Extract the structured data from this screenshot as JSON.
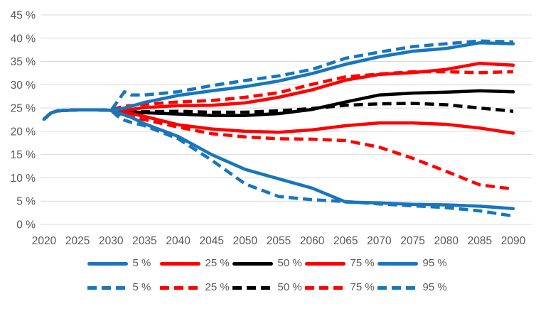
{
  "colors": {
    "blue": "#1776BC",
    "red": "#FF0000",
    "black": "#000000",
    "grid": "#D9D9D9",
    "tick_text": "#595959",
    "background": "#FFFFFF"
  },
  "chart_data": {
    "type": "line",
    "title": "",
    "xlabel": "",
    "ylabel": "",
    "xlim": [
      2020,
      2090
    ],
    "ylim": [
      0,
      45
    ],
    "grid": "horizontal-only",
    "legend_position": "bottom-two-rows",
    "y_ticks": [
      {
        "value": 0,
        "label": "0 %"
      },
      {
        "value": 5,
        "label": "5 %"
      },
      {
        "value": 10,
        "label": "10 %"
      },
      {
        "value": 15,
        "label": "15 %"
      },
      {
        "value": 20,
        "label": "20 %"
      },
      {
        "value": 25,
        "label": "25 %"
      },
      {
        "value": 30,
        "label": "30 %"
      },
      {
        "value": 35,
        "label": "35 %"
      },
      {
        "value": 40,
        "label": "40 %"
      },
      {
        "value": 45,
        "label": "45 %"
      }
    ],
    "x_ticks": [
      {
        "value": 2020,
        "label": "2020"
      },
      {
        "value": 2025,
        "label": "2025"
      },
      {
        "value": 2030,
        "label": "2030"
      },
      {
        "value": 2035,
        "label": "2035"
      },
      {
        "value": 2040,
        "label": "2040"
      },
      {
        "value": 2045,
        "label": "2045"
      },
      {
        "value": 2050,
        "label": "2050"
      },
      {
        "value": 2055,
        "label": "2055"
      },
      {
        "value": 2060,
        "label": "2060"
      },
      {
        "value": 2065,
        "label": "2065"
      },
      {
        "value": 2070,
        "label": "2070"
      },
      {
        "value": 2075,
        "label": "2075"
      },
      {
        "value": 2080,
        "label": "2080"
      },
      {
        "value": 2085,
        "label": "2085"
      },
      {
        "value": 2090,
        "label": "2090"
      }
    ],
    "x": [
      2020,
      2021,
      2022,
      2025,
      2028,
      2030,
      2031,
      2032,
      2033,
      2035,
      2040,
      2045,
      2050,
      2055,
      2060,
      2065,
      2070,
      2075,
      2080,
      2085,
      2090
    ],
    "series": [
      {
        "id": "solid-50",
        "name": "50 %",
        "color": "#000000",
        "dash": false,
        "values": [
          22.6,
          23.9,
          24.4,
          24.6,
          24.6,
          24.5,
          24.4,
          24.3,
          24.2,
          24.0,
          23.7,
          23.4,
          23.4,
          23.8,
          24.7,
          26.3,
          27.8,
          28.2,
          28.4,
          28.7,
          28.5
        ]
      },
      {
        "id": "dashed-50",
        "name": "50 %",
        "color": "#000000",
        "dash": true,
        "values": [
          22.6,
          23.9,
          24.4,
          24.6,
          24.6,
          24.5,
          24.4,
          24.4,
          24.3,
          24.2,
          24.3,
          24.1,
          24.1,
          24.4,
          24.9,
          25.6,
          25.9,
          26.0,
          25.7,
          25.0,
          24.3
        ]
      },
      {
        "id": "solid-25",
        "name": "25 %",
        "color": "#FF0000",
        "dash": false,
        "values": [
          22.6,
          23.9,
          24.4,
          24.6,
          24.6,
          24.5,
          24.2,
          24.0,
          23.8,
          23.2,
          21.4,
          20.5,
          20.0,
          19.8,
          20.3,
          21.2,
          21.8,
          21.8,
          21.5,
          20.7,
          19.6
        ]
      },
      {
        "id": "dashed-25",
        "name": "25 %",
        "color": "#FF0000",
        "dash": true,
        "values": [
          22.6,
          23.9,
          24.4,
          24.6,
          24.6,
          24.5,
          23.8,
          23.4,
          23.1,
          22.5,
          20.9,
          19.5,
          18.8,
          18.4,
          18.3,
          18.0,
          16.6,
          14.2,
          11.4,
          8.5,
          7.6
        ]
      },
      {
        "id": "solid-75",
        "name": "75 %",
        "color": "#FF0000",
        "dash": false,
        "values": [
          22.6,
          23.9,
          24.4,
          24.6,
          24.6,
          24.5,
          24.5,
          24.6,
          24.7,
          25.1,
          25.5,
          25.6,
          26.1,
          27.3,
          28.9,
          31.0,
          32.2,
          32.6,
          33.3,
          34.6,
          34.2
        ]
      },
      {
        "id": "dashed-75",
        "name": "75 %",
        "color": "#FF0000",
        "dash": true,
        "values": [
          22.6,
          23.9,
          24.4,
          24.6,
          24.6,
          24.5,
          25.0,
          25.4,
          25.5,
          25.8,
          26.3,
          26.6,
          27.3,
          28.3,
          30.1,
          31.7,
          32.3,
          32.8,
          32.8,
          32.6,
          32.8
        ]
      },
      {
        "id": "solid-5",
        "name": "5 %",
        "color": "#1776BC",
        "dash": false,
        "values": [
          22.6,
          23.9,
          24.4,
          24.6,
          24.6,
          24.5,
          24.0,
          23.5,
          23.0,
          21.6,
          18.9,
          15.0,
          11.8,
          9.8,
          7.8,
          4.8,
          4.6,
          4.3,
          4.2,
          3.9,
          3.4
        ]
      },
      {
        "id": "dashed-5",
        "name": "5 %",
        "color": "#1776BC",
        "dash": true,
        "values": [
          22.6,
          23.9,
          24.4,
          24.6,
          24.6,
          24.5,
          23.2,
          22.4,
          21.9,
          21.2,
          18.4,
          13.8,
          8.7,
          6.0,
          5.3,
          4.9,
          4.4,
          4.0,
          3.6,
          2.9,
          1.8
        ]
      },
      {
        "id": "solid-95",
        "name": "95 %",
        "color": "#1776BC",
        "dash": false,
        "values": [
          22.6,
          23.9,
          24.4,
          24.6,
          24.6,
          24.5,
          24.7,
          25.0,
          25.4,
          26.2,
          27.7,
          28.7,
          29.6,
          30.8,
          32.4,
          34.4,
          36.0,
          37.2,
          37.8,
          39.0,
          38.8
        ]
      },
      {
        "id": "dashed-95",
        "name": "95 %",
        "color": "#1776BC",
        "dash": true,
        "values": [
          22.6,
          23.9,
          24.4,
          24.6,
          24.6,
          24.5,
          26.5,
          28.5,
          27.8,
          27.8,
          28.5,
          29.8,
          30.9,
          31.9,
          33.3,
          35.7,
          37.0,
          38.2,
          38.8,
          39.4,
          39.2
        ]
      }
    ],
    "legend": [
      {
        "style": "solid",
        "entries": [
          {
            "label": "5 %",
            "color": "#1776BC"
          },
          {
            "label": "25 %",
            "color": "#FF0000"
          },
          {
            "label": "50 %",
            "color": "#000000"
          },
          {
            "label": "75 %",
            "color": "#FF0000"
          },
          {
            "label": "95 %",
            "color": "#1776BC"
          }
        ]
      },
      {
        "style": "dashed",
        "entries": [
          {
            "label": "5 %",
            "color": "#1776BC"
          },
          {
            "label": "25 %",
            "color": "#FF0000"
          },
          {
            "label": "50 %",
            "color": "#000000"
          },
          {
            "label": "75 %",
            "color": "#FF0000"
          },
          {
            "label": "95 %",
            "color": "#1776BC"
          }
        ]
      }
    ]
  }
}
